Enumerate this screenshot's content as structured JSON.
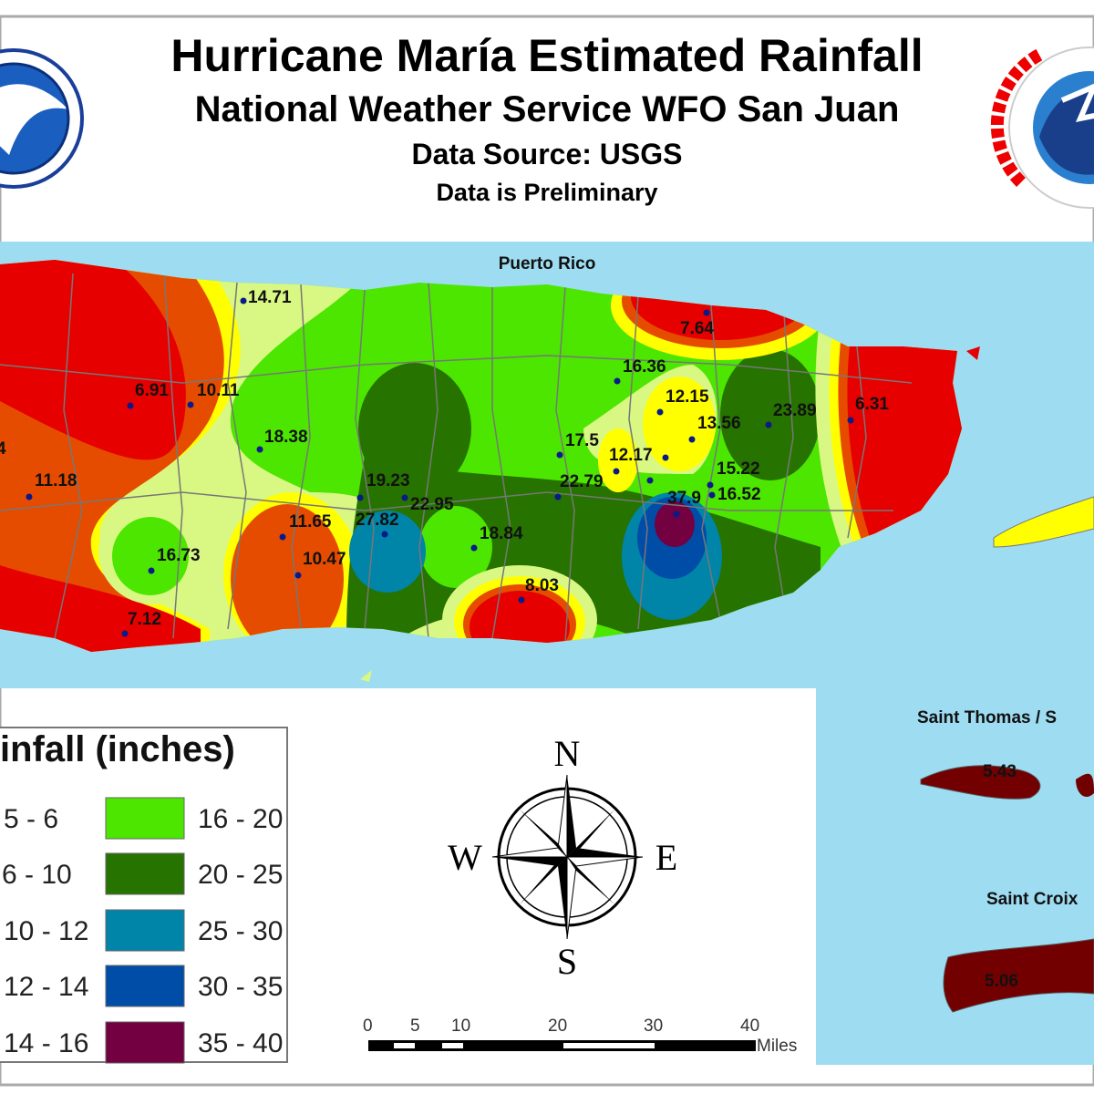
{
  "header": {
    "title": "Hurricane María Estimated Rainfall",
    "subtitle": "National Weather Service WFO San Juan",
    "source": "Data Source: USGS",
    "note": "Data is Preliminary"
  },
  "map": {
    "region_label": "Puerto Rico",
    "inset_labels": [
      "Saint Thomas / S",
      "Saint Croix"
    ],
    "stations": [
      "14.71",
      "6.91",
      "10.11",
      "18.38",
      "11.18",
      "4",
      "16.73",
      "7.12",
      "11.65",
      "10.47",
      "27.82",
      "19.23",
      "22.95",
      "18.84",
      "8.03",
      "7.64",
      "6.31",
      "16.36",
      "12.15",
      "13.56",
      "23.89",
      "17.5",
      "12.17",
      "22.79",
      "15.22",
      "16.52",
      "37.9",
      "5.43",
      "5.06"
    ],
    "colors": {
      "water": "#9edcf2",
      "red": "#e60000",
      "orange": "#e64c00",
      "yellow": "#ffff00",
      "paleyellow": "#d9f783",
      "green": "#4ce600",
      "darkgreen": "#267300",
      "teal": "#0084a8",
      "blue": "#004da8",
      "purple": "#730040",
      "darkred": "#730000"
    }
  },
  "legend": {
    "title": "infall (inches)",
    "left": [
      "5 - 6",
      "6 - 10",
      "10 - 12",
      "12 - 14",
      "14 - 16"
    ],
    "right": [
      {
        "label": "16 - 20",
        "color": "#4ce600"
      },
      {
        "label": "20 - 25",
        "color": "#267300"
      },
      {
        "label": "25 - 30",
        "color": "#0084a8"
      },
      {
        "label": "30 - 35",
        "color": "#004da8"
      },
      {
        "label": "35 - 40",
        "color": "#730040"
      }
    ]
  },
  "compass": {
    "n": "N",
    "s": "S",
    "e": "E",
    "w": "W"
  },
  "scalebar": {
    "ticks": [
      "0",
      "5",
      "10",
      "20",
      "30",
      "40"
    ],
    "unit": "Miles"
  }
}
